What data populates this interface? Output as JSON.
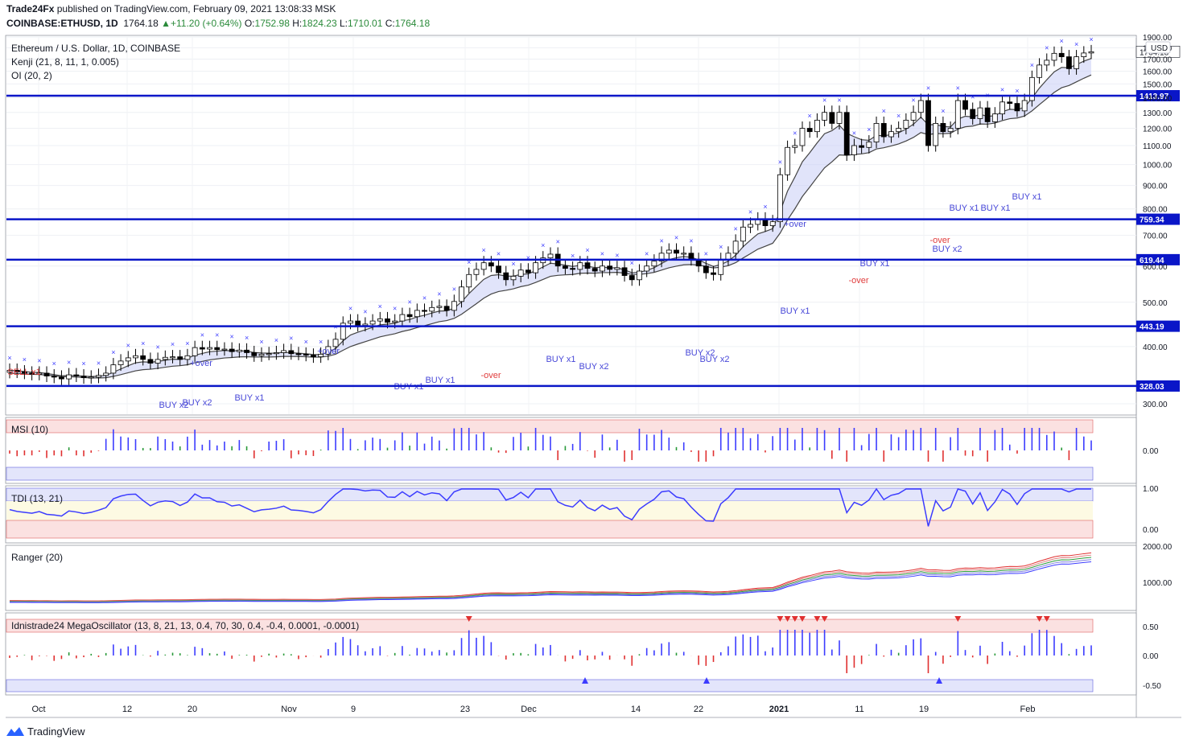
{
  "header": {
    "publisher": "Trade24Fx",
    "published_text": "published on TradingView.com, February 09, 2021 13:08:33 MSK",
    "symbol": "COINBASE:ETHUSD, 1D",
    "last": "1764.18",
    "change": "+11.20 (+0.64%)",
    "o_label": "O:",
    "o": "1752.98",
    "h_label": "H:",
    "h": "1824.23",
    "l_label": "L:",
    "l": "1710.01",
    "c_label": "C:",
    "c": "1764.18"
  },
  "legend": {
    "title": "Ethereum / U.S. Dollar, 1D, COINBASE",
    "kenji": "Kenji (21, 8, 11, 1, 0.005)",
    "oi": "OI (20, 2)"
  },
  "currency": "USD",
  "pane_labels": {
    "msi": "MSI (10)",
    "tdi": "TDI (13, 21)",
    "ranger": "Ranger (20)",
    "mega": "Idnistrade24 MegaOscillator (13, 8, 21, 13, 0.4, 70, 30, 0.4, -0.4, 0.0001, -0.0001)"
  },
  "brand": "TradingView",
  "colors": {
    "up": "#ffffff",
    "down": "#000000",
    "level": "#0a16c8",
    "cross": "#3c3cff",
    "band": "#c9cdf5",
    "msi_blue": "#3c3cff",
    "msi_green": "#2a9a3a",
    "msi_red": "#e03030"
  },
  "chart_data": {
    "type": "candlestick",
    "title": "Ethereum / U.S. Dollar, 1D, COINBASE",
    "price_ticks": [
      "1900.00",
      "1800.00",
      "1700.00",
      "1600.00",
      "1500.00",
      "1400.00",
      "1300.00",
      "1200.00",
      "1100.00",
      "1000.00",
      "900.00",
      "800.00",
      "700.00",
      "600.00",
      "500.00",
      "400.00",
      "300.00"
    ],
    "x_ticks": [
      "Oct",
      "12",
      "20",
      "Nov",
      "9",
      "23",
      "Dec",
      "14",
      "22",
      "2021",
      "11",
      "19",
      "Feb"
    ],
    "last_price_label": "1764.18",
    "horizontal_levels": [
      {
        "value": 1413.97,
        "label": "1413.97"
      },
      {
        "value": 759.34,
        "label": "759.34"
      },
      {
        "value": 619.44,
        "label": "619.44"
      },
      {
        "value": 443.19,
        "label": "443.19"
      },
      {
        "value": 328.03,
        "label": "328.03"
      }
    ],
    "closes": [
      355,
      352,
      350,
      348,
      350,
      345,
      343,
      340,
      347,
      345,
      342,
      343,
      346,
      350,
      365,
      372,
      378,
      382,
      375,
      368,
      375,
      379,
      380,
      375,
      382,
      398,
      395,
      398,
      394,
      395,
      390,
      393,
      388,
      382,
      385,
      386,
      388,
      392,
      386,
      385,
      383,
      380,
      385,
      400,
      415,
      450,
      455,
      445,
      448,
      455,
      460,
      452,
      455,
      470,
      465,
      480,
      478,
      487,
      490,
      480,
      502,
      540,
      575,
      590,
      610,
      600,
      580,
      560,
      570,
      588,
      580,
      610,
      625,
      637,
      600,
      593,
      590,
      610,
      593,
      585,
      600,
      590,
      595,
      572,
      560,
      585,
      600,
      615,
      640,
      650,
      640,
      640,
      620,
      600,
      580,
      575,
      620,
      640,
      680,
      730,
      740,
      760,
      735,
      750,
      950,
      1090,
      1100,
      1200,
      1180,
      1250,
      1300,
      1230,
      1300,
      1050,
      1100,
      1090,
      1120,
      1230,
      1150,
      1180,
      1200,
      1250,
      1300,
      1380,
      1100,
      1230,
      1180,
      1200,
      1380,
      1320,
      1260,
      1330,
      1240,
      1290,
      1370,
      1360,
      1310,
      1380,
      1550,
      1650,
      1690,
      1750,
      1720,
      1620,
      1720,
      1753,
      1764
    ],
    "volatility_band": {
      "upper_from": 380,
      "upper_to": 1500
    },
    "signals": [
      "BUY x1",
      "BUY x2",
      "+over",
      "-over",
      "SELL x1"
    ],
    "msi": {
      "levels": [
        -0.6,
        0.6
      ],
      "zero_label": "0.00"
    },
    "tdi": {
      "range": [
        0,
        1
      ],
      "ticks": [
        "1.00",
        "0.00"
      ]
    },
    "ranger": {
      "ticks": [
        "2000.00",
        "1000.00"
      ]
    },
    "mega": {
      "ticks": [
        "0.50",
        "0.00",
        "-0.50"
      ]
    }
  }
}
